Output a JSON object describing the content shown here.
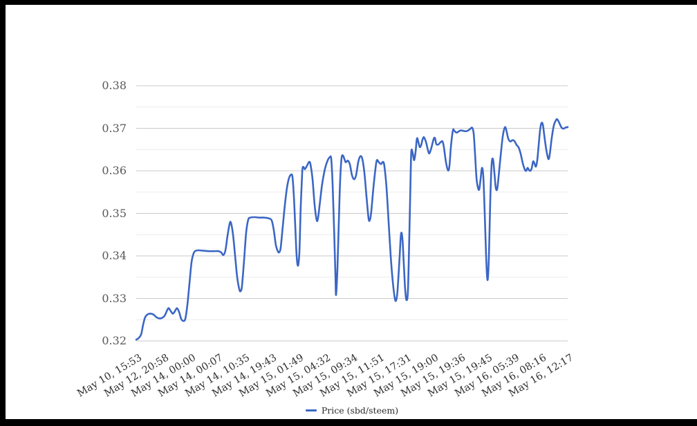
{
  "frame": {
    "background": "#000000",
    "canvas_background": "#ffffff"
  },
  "colors": {
    "series_line": "#3b66c4",
    "major_gridline": "#c9c9c9",
    "minor_gridline": "#ebebeb",
    "y_label_color": "#58585a",
    "x_label_color": "#2f2f2f",
    "legend_text_color": "#2b2b2b"
  },
  "legend": {
    "label": "Price (sbd/steem)"
  },
  "chart_data": {
    "type": "line",
    "title": "",
    "xlabel": "",
    "ylabel": "",
    "ylim": [
      0.32,
      0.38
    ],
    "grid": true,
    "legend_position": "bottom",
    "x_label_rotation_deg": -31,
    "y_tick_labels": [
      "0.38",
      "0.37",
      "0.36",
      "0.35",
      "0.34",
      "0.33",
      "0.32"
    ],
    "y_ticks": [
      0.38,
      0.37,
      0.36,
      0.35,
      0.34,
      0.33,
      0.32
    ],
    "y_minor_ticks": [
      0.375,
      0.365,
      0.355,
      0.345,
      0.335,
      0.325
    ],
    "x_tick_labels": [
      "May 10, 15:53",
      "May 12, 20:58",
      "May 14, 00:00",
      "May 14, 00:07",
      "May 14, 10:35",
      "May 14, 19:43",
      "May 15, 01:49",
      "May 15, 04:32",
      "May 15, 09:34",
      "May 15, 11:51",
      "May 15, 17:31",
      "May 15, 19:00",
      "May 15, 19:36",
      "May 15, 19:45",
      "May 16, 05:39",
      "May 16, 08:16",
      "May 16, 12:17"
    ],
    "series": [
      {
        "name": "Price (sbd/steem)",
        "color": "#3b66c4",
        "points": [
          [
            197,
            0.3203
          ],
          [
            200,
            0.3206
          ],
          [
            204,
            0.3215
          ],
          [
            207,
            0.3238
          ],
          [
            210,
            0.3256
          ],
          [
            214,
            0.3263
          ],
          [
            218,
            0.3264
          ],
          [
            222,
            0.3262
          ],
          [
            226,
            0.3256
          ],
          [
            230,
            0.3253
          ],
          [
            234,
            0.3254
          ],
          [
            238,
            0.3259
          ],
          [
            242,
            0.3273
          ],
          [
            244,
            0.3277
          ],
          [
            247,
            0.327
          ],
          [
            250,
            0.3264
          ],
          [
            253,
            0.327
          ],
          [
            256,
            0.3277
          ],
          [
            259,
            0.3268
          ],
          [
            262,
            0.3252
          ],
          [
            265,
            0.3247
          ],
          [
            268,
            0.3252
          ],
          [
            271,
            0.3285
          ],
          [
            274,
            0.3335
          ],
          [
            277,
            0.3385
          ],
          [
            280,
            0.3406
          ],
          [
            283,
            0.3412
          ],
          [
            288,
            0.3413
          ],
          [
            295,
            0.3412
          ],
          [
            302,
            0.3411
          ],
          [
            309,
            0.3411
          ],
          [
            316,
            0.3411
          ],
          [
            320,
            0.3408
          ],
          [
            323,
            0.3402
          ],
          [
            326,
            0.3413
          ],
          [
            329,
            0.3447
          ],
          [
            332,
            0.3475
          ],
          [
            334,
            0.3478
          ],
          [
            337,
            0.345
          ],
          [
            340,
            0.34
          ],
          [
            343,
            0.335
          ],
          [
            346,
            0.3322
          ],
          [
            348,
            0.3317
          ],
          [
            350,
            0.333
          ],
          [
            353,
            0.339
          ],
          [
            356,
            0.3455
          ],
          [
            359,
            0.3485
          ],
          [
            362,
            0.349
          ],
          [
            368,
            0.3491
          ],
          [
            375,
            0.349
          ],
          [
            382,
            0.349
          ],
          [
            389,
            0.3488
          ],
          [
            393,
            0.3483
          ],
          [
            396,
            0.346
          ],
          [
            399,
            0.3425
          ],
          [
            402,
            0.341
          ],
          [
            404,
            0.3409
          ],
          [
            406,
            0.342
          ],
          [
            409,
            0.347
          ],
          [
            412,
            0.352
          ],
          [
            415,
            0.356
          ],
          [
            418,
            0.3583
          ],
          [
            421,
            0.3591
          ],
          [
            423,
            0.3585
          ],
          [
            425,
            0.354
          ],
          [
            427,
            0.347
          ],
          [
            429,
            0.34
          ],
          [
            431,
            0.3377
          ],
          [
            433,
            0.341
          ],
          [
            435,
            0.352
          ],
          [
            437,
            0.3595
          ],
          [
            438,
            0.3609
          ],
          [
            440,
            0.3606
          ],
          [
            441,
            0.3604
          ],
          [
            444,
            0.3612
          ],
          [
            447,
            0.3621
          ],
          [
            449,
            0.3615
          ],
          [
            452,
            0.358
          ],
          [
            455,
            0.352
          ],
          [
            458,
            0.3484
          ],
          [
            460,
            0.349
          ],
          [
            463,
            0.353
          ],
          [
            466,
            0.357
          ],
          [
            470,
            0.3605
          ],
          [
            474,
            0.3625
          ],
          [
            477,
            0.3632
          ],
          [
            479,
            0.3628
          ],
          [
            481,
            0.357
          ],
          [
            483,
            0.347
          ],
          [
            485,
            0.336
          ],
          [
            486,
            0.3308
          ],
          [
            488,
            0.337
          ],
          [
            490,
            0.348
          ],
          [
            492,
            0.358
          ],
          [
            494,
            0.363
          ],
          [
            496,
            0.3636
          ],
          [
            498,
            0.3628
          ],
          [
            500,
            0.362
          ],
          [
            503,
            0.3624
          ],
          [
            506,
            0.3615
          ],
          [
            509,
            0.359
          ],
          [
            512,
            0.358
          ],
          [
            515,
            0.359
          ],
          [
            518,
            0.362
          ],
          [
            521,
            0.3634
          ],
          [
            524,
            0.3628
          ],
          [
            527,
            0.3595
          ],
          [
            530,
            0.354
          ],
          [
            533,
            0.3488
          ],
          [
            535,
            0.3485
          ],
          [
            537,
            0.3505
          ],
          [
            540,
            0.356
          ],
          [
            543,
            0.3605
          ],
          [
            545,
            0.3625
          ],
          [
            548,
            0.362
          ],
          [
            551,
            0.3616
          ],
          [
            554,
            0.3621
          ],
          [
            556,
            0.361
          ],
          [
            559,
            0.356
          ],
          [
            562,
            0.348
          ],
          [
            565,
            0.34
          ],
          [
            568,
            0.334
          ],
          [
            571,
            0.33
          ],
          [
            573,
            0.3296
          ],
          [
            575,
            0.332
          ],
          [
            578,
            0.34
          ],
          [
            580,
            0.3452
          ],
          [
            582,
            0.344
          ],
          [
            584,
            0.338
          ],
          [
            586,
            0.332
          ],
          [
            588,
            0.3296
          ],
          [
            590,
            0.332
          ],
          [
            592,
            0.345
          ],
          [
            594,
            0.36
          ],
          [
            595,
            0.3648
          ],
          [
            597,
            0.364
          ],
          [
            599,
            0.3625
          ],
          [
            601,
            0.3645
          ],
          [
            603,
            0.3676
          ],
          [
            605,
            0.3668
          ],
          [
            607,
            0.3656
          ],
          [
            609,
            0.366
          ],
          [
            611,
            0.3673
          ],
          [
            613,
            0.3679
          ],
          [
            616,
            0.3668
          ],
          [
            619,
            0.3648
          ],
          [
            621,
            0.3641
          ],
          [
            624,
            0.3655
          ],
          [
            627,
            0.3674
          ],
          [
            629,
            0.3677
          ],
          [
            631,
            0.3663
          ],
          [
            634,
            0.3662
          ],
          [
            637,
            0.3667
          ],
          [
            640,
            0.3669
          ],
          [
            642,
            0.3655
          ],
          [
            645,
            0.362
          ],
          [
            648,
            0.3601
          ],
          [
            650,
            0.3612
          ],
          [
            652,
            0.3655
          ],
          [
            655,
            0.3695
          ],
          [
            657,
            0.3694
          ],
          [
            660,
            0.369
          ],
          [
            663,
            0.3692
          ],
          [
            666,
            0.3695
          ],
          [
            670,
            0.3694
          ],
          [
            674,
            0.3693
          ],
          [
            678,
            0.3696
          ],
          [
            681,
            0.37
          ],
          [
            683,
            0.3701
          ],
          [
            685,
            0.3688
          ],
          [
            687,
            0.364
          ],
          [
            689,
            0.3585
          ],
          [
            691,
            0.3562
          ],
          [
            693,
            0.3556
          ],
          [
            695,
            0.358
          ],
          [
            697,
            0.3607
          ],
          [
            699,
            0.3585
          ],
          [
            701,
            0.35
          ],
          [
            703,
            0.34
          ],
          [
            705,
            0.3343
          ],
          [
            707,
            0.3395
          ],
          [
            709,
            0.353
          ],
          [
            711,
            0.3615
          ],
          [
            713,
            0.3627
          ],
          [
            715,
            0.3595
          ],
          [
            717,
            0.356
          ],
          [
            719,
            0.3557
          ],
          [
            721,
            0.3585
          ],
          [
            724,
            0.3635
          ],
          [
            727,
            0.368
          ],
          [
            730,
            0.3702
          ],
          [
            732,
            0.3697
          ],
          [
            735,
            0.3676
          ],
          [
            738,
            0.3669
          ],
          [
            741,
            0.3672
          ],
          [
            744,
            0.367
          ],
          [
            747,
            0.3661
          ],
          [
            750,
            0.3655
          ],
          [
            753,
            0.364
          ],
          [
            756,
            0.3618
          ],
          [
            759,
            0.3603
          ],
          [
            761,
            0.36
          ],
          [
            763,
            0.3607
          ],
          [
            765,
            0.3602
          ],
          [
            767,
            0.36
          ],
          [
            769,
            0.3606
          ],
          [
            771,
            0.3622
          ],
          [
            773,
            0.3617
          ],
          [
            775,
            0.361
          ],
          [
            777,
            0.3625
          ],
          [
            779,
            0.366
          ],
          [
            781,
            0.3695
          ],
          [
            783,
            0.3712
          ],
          [
            785,
            0.3709
          ],
          [
            787,
            0.3685
          ],
          [
            790,
            0.365
          ],
          [
            793,
            0.3628
          ],
          [
            795,
            0.3638
          ],
          [
            798,
            0.3678
          ],
          [
            801,
            0.3707
          ],
          [
            804,
            0.3719
          ],
          [
            806,
            0.3721
          ],
          [
            809,
            0.3712
          ],
          [
            812,
            0.3702
          ],
          [
            815,
            0.3699
          ],
          [
            818,
            0.3702
          ],
          [
            821,
            0.3703
          ]
        ]
      }
    ]
  }
}
